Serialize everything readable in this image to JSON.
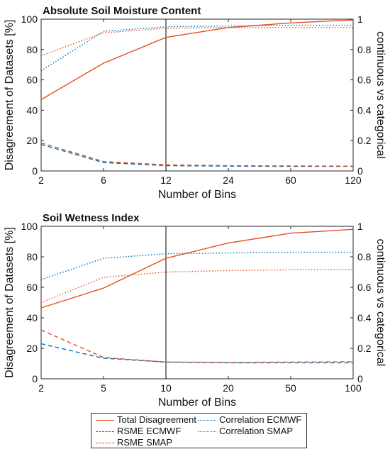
{
  "colors": {
    "orange": "#e4501b",
    "blue": "#0072bd",
    "axis": "#262626",
    "vline": "#000000"
  },
  "chart_data": [
    {
      "type": "line",
      "title": "Absolute Soil Moisture Content",
      "xlabel": "Number of Bins",
      "ylabel": "Disagreement of Datasets [%]",
      "ylabel_right": "continuous vs categorical",
      "x": [
        "2",
        "6",
        "12",
        "24",
        "60",
        "120"
      ],
      "ylim": [
        0,
        100
      ],
      "yticks": [
        "0",
        "20",
        "40",
        "60",
        "80",
        "100"
      ],
      "ylim_right": [
        0,
        1
      ],
      "yticks_right": [
        "0",
        "0.2",
        "0.4",
        "0.6",
        "0.8",
        "1"
      ],
      "vline_at": "12",
      "grid": false,
      "series": [
        {
          "name": "Total Disagreement",
          "axis": "left",
          "color": "orange",
          "style": "solid",
          "values": [
            47,
            71,
            88,
            94.5,
            97.5,
            99.5
          ]
        },
        {
          "name": "RSME ECMWF",
          "axis": "left",
          "color": "blue",
          "style": "dashed",
          "values": [
            17.5,
            5.5,
            3.5,
            3.2,
            3.0,
            3.0
          ]
        },
        {
          "name": "RSME SMAP",
          "axis": "left",
          "color": "orange",
          "style": "dashed",
          "values": [
            18.5,
            6.2,
            4.0,
            3.5,
            3.3,
            3.2
          ]
        },
        {
          "name": "Correlation ECMWF",
          "axis": "right",
          "color": "blue",
          "style": "dotted",
          "values": [
            0.66,
            0.92,
            0.95,
            0.955,
            0.96,
            0.96
          ]
        },
        {
          "name": "Correlation SMAP",
          "axis": "right",
          "color": "orange",
          "style": "dotted",
          "values": [
            0.76,
            0.91,
            0.94,
            0.945,
            0.945,
            0.945
          ]
        }
      ]
    },
    {
      "type": "line",
      "title": "Soil Wetness Index",
      "xlabel": "Number of Bins",
      "ylabel": "Disagreement of Datasets [%]",
      "ylabel_right": "continuous vs categorical",
      "x": [
        "2",
        "5",
        "10",
        "20",
        "50",
        "100"
      ],
      "ylim": [
        0,
        100
      ],
      "yticks": [
        "0",
        "20",
        "40",
        "60",
        "80",
        "100"
      ],
      "ylim_right": [
        0,
        1
      ],
      "yticks_right": [
        "0",
        "0.2",
        "0.4",
        "0.6",
        "0.8",
        "1"
      ],
      "vline_at": "10",
      "grid": false,
      "series": [
        {
          "name": "Total Disagreement",
          "axis": "left",
          "color": "orange",
          "style": "solid",
          "values": [
            46.5,
            59.5,
            79,
            89,
            95.5,
            98
          ]
        },
        {
          "name": "RSME ECMWF",
          "axis": "left",
          "color": "blue",
          "style": "dashed",
          "values": [
            23,
            13.5,
            11,
            10.5,
            10.5,
            10.5
          ]
        },
        {
          "name": "RSME SMAP",
          "axis": "left",
          "color": "orange",
          "style": "dashed",
          "values": [
            32,
            14,
            11,
            10.8,
            11,
            11.2
          ]
        },
        {
          "name": "Correlation ECMWF",
          "axis": "right",
          "color": "blue",
          "style": "dotted",
          "values": [
            0.65,
            0.79,
            0.82,
            0.825,
            0.83,
            0.83
          ]
        },
        {
          "name": "Correlation SMAP",
          "axis": "right",
          "color": "orange",
          "style": "dotted",
          "values": [
            0.5,
            0.665,
            0.7,
            0.71,
            0.715,
            0.715
          ]
        }
      ]
    }
  ],
  "legend": {
    "placement": "bottom-center",
    "items": [
      {
        "label": "Total Disagreement",
        "color": "orange",
        "style": "solid"
      },
      {
        "label": "Correlation ECMWF",
        "color": "blue",
        "style": "dotted"
      },
      {
        "label": "RSME ECMWF",
        "color": "blue",
        "style": "dashed"
      },
      {
        "label": "Correlation SMAP",
        "color": "orange",
        "style": "dotted"
      },
      {
        "label": "RSME SMAP",
        "color": "orange",
        "style": "dashed"
      }
    ]
  }
}
